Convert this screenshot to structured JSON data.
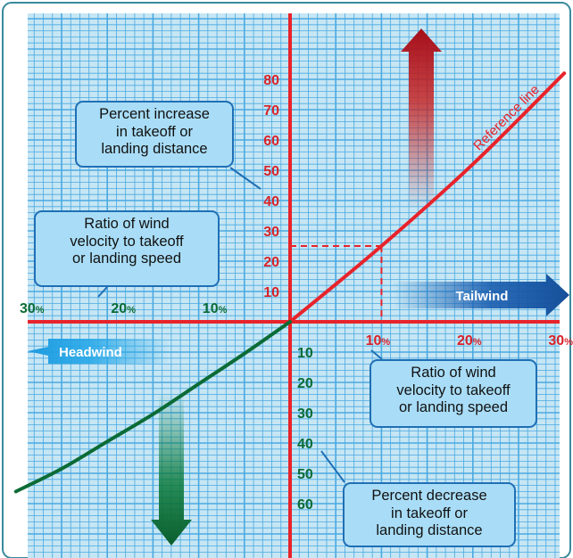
{
  "chart_data": {
    "type": "line",
    "title": "",
    "x_axis": {
      "positive_direction_label": "Tailwind",
      "negative_direction_label": "Headwind",
      "tick_labels_right": [
        {
          "value": 10,
          "text": "10",
          "unit": "%"
        },
        {
          "value": 20,
          "text": "20",
          "unit": "%"
        },
        {
          "value": 30,
          "text": "30",
          "unit": "%"
        }
      ],
      "tick_labels_left": [
        {
          "value": -30,
          "text": "30",
          "unit": "%"
        },
        {
          "value": -20,
          "text": "20",
          "unit": "%"
        },
        {
          "value": -10,
          "text": "10",
          "unit": "%"
        }
      ],
      "xlim": [
        -30,
        30
      ]
    },
    "y_axis": {
      "tick_labels_positive": [
        10,
        20,
        30,
        40,
        50,
        60,
        70,
        80
      ],
      "tick_labels_negative": [
        10,
        20,
        30,
        40,
        50,
        60
      ],
      "ylim": [
        -63,
        84
      ]
    },
    "series": [
      {
        "name": "Reference line",
        "color": "#e8232b",
        "x": [
          0,
          10,
          20,
          30
        ],
        "y": [
          0,
          25,
          52,
          82
        ]
      },
      {
        "color": "#0b6b35",
        "x": [
          -30,
          -25,
          -20,
          -15,
          -10,
          -5,
          0
        ],
        "y": [
          -56,
          -48.5,
          -39.5,
          -30.5,
          -20.5,
          -10.5,
          0
        ]
      }
    ],
    "guide": {
      "x": 10,
      "y": 25
    },
    "callouts": {
      "top_left": [
        "Percent increase",
        "in takeoff or",
        "landing distance"
      ],
      "mid_left": [
        "Ratio of wind",
        "velocity to takeoff",
        "or landing speed"
      ],
      "bottom_right": [
        "Ratio of wind",
        "velocity to takeoff",
        "or landing speed"
      ],
      "bottom_center": [
        "Percent decrease",
        "in takeoff or",
        "landing distance"
      ]
    },
    "colors": {
      "grid_background": "#c6e6f4",
      "grid_line": "#4aa9e1",
      "axis": "#e8232b",
      "positive_label": "#d8232a",
      "negative_label": "#0b6b35",
      "callout_fill": "#a9ddf7",
      "callout_border": "#1f6fb5",
      "frame": "#3a8a9c"
    }
  }
}
